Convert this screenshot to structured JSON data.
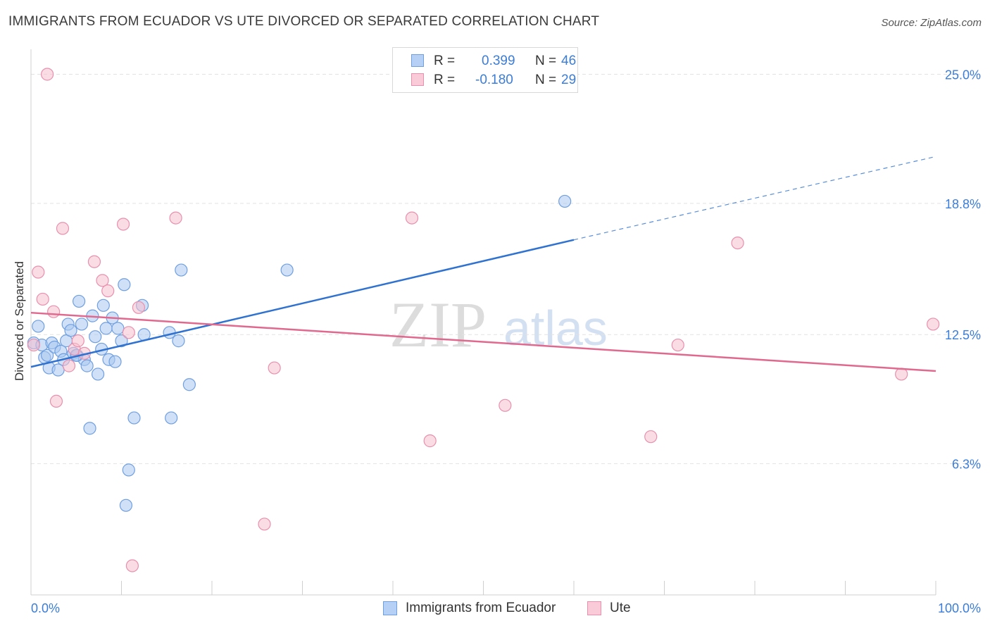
{
  "title": "IMMIGRANTS FROM ECUADOR VS UTE DIVORCED OR SEPARATED CORRELATION CHART",
  "source": "Source: ZipAtlas.com",
  "watermark": {
    "zip": "ZIP",
    "atlas": "atlas"
  },
  "legend": {
    "rows": [
      {
        "r_label": "R =",
        "r_value": "0.399",
        "n_label": "N =",
        "n_value": "46"
      },
      {
        "r_label": "R =",
        "r_value": "-0.180",
        "n_label": "N =",
        "n_value": "29"
      }
    ]
  },
  "bottom_legend": [
    "Immigrants from Ecuador",
    "Ute"
  ],
  "colors": {
    "blue_fill": "#a9c8f0",
    "blue_stroke": "#6f9fe0",
    "blue_line": "#2f72d0",
    "pink_fill": "#f6bfd0",
    "pink_stroke": "#e890ad",
    "pink_line": "#e0698f",
    "tick_label": "#3b7dd8",
    "grid": "#e2e2e2"
  },
  "chart_data": {
    "type": "scatter",
    "title": "IMMIGRANTS FROM ECUADOR VS UTE DIVORCED OR SEPARATED CORRELATION CHART",
    "xlabel": "",
    "ylabel": "Divorced or Separated",
    "xlim": [
      0,
      100
    ],
    "ylim": [
      0,
      26.2
    ],
    "x_tick_labels": [
      "0.0%",
      "100.0%"
    ],
    "x_minor_ticks": [
      10,
      20,
      30,
      40,
      50,
      60,
      70,
      80,
      90,
      100
    ],
    "y_ticks": [
      6.3,
      12.5,
      18.8,
      25.0
    ],
    "y_tick_labels": [
      "6.3%",
      "12.5%",
      "18.8%",
      "25.0%"
    ],
    "grid": "horizontal dashed",
    "legend_position": "top-center",
    "series": [
      {
        "name": "Immigrants from Ecuador",
        "color": "#a9c8f0",
        "points": [
          [
            0.3,
            12.1
          ],
          [
            0.8,
            12.9
          ],
          [
            1.2,
            12.0
          ],
          [
            1.5,
            11.4
          ],
          [
            1.8,
            11.5
          ],
          [
            2.0,
            10.9
          ],
          [
            2.3,
            12.1
          ],
          [
            2.6,
            11.9
          ],
          [
            3.0,
            10.8
          ],
          [
            3.3,
            11.7
          ],
          [
            3.6,
            11.3
          ],
          [
            3.9,
            12.2
          ],
          [
            4.1,
            13.0
          ],
          [
            4.4,
            12.7
          ],
          [
            4.7,
            11.6
          ],
          [
            5.1,
            11.5
          ],
          [
            5.3,
            14.1
          ],
          [
            5.6,
            13.0
          ],
          [
            5.9,
            11.3
          ],
          [
            6.2,
            11.0
          ],
          [
            6.5,
            8.0
          ],
          [
            6.8,
            13.4
          ],
          [
            7.1,
            12.4
          ],
          [
            7.4,
            10.6
          ],
          [
            7.8,
            11.8
          ],
          [
            8.0,
            13.9
          ],
          [
            8.3,
            12.8
          ],
          [
            8.6,
            11.3
          ],
          [
            9.0,
            13.3
          ],
          [
            9.3,
            11.2
          ],
          [
            9.6,
            12.8
          ],
          [
            10.0,
            12.2
          ],
          [
            10.3,
            14.9
          ],
          [
            10.5,
            4.3
          ],
          [
            10.8,
            6.0
          ],
          [
            11.4,
            8.5
          ],
          [
            12.3,
            13.9
          ],
          [
            12.5,
            12.5
          ],
          [
            15.3,
            12.6
          ],
          [
            15.5,
            8.5
          ],
          [
            16.3,
            12.2
          ],
          [
            16.6,
            15.6
          ],
          [
            17.5,
            10.1
          ],
          [
            28.3,
            15.6
          ],
          [
            59.0,
            18.9
          ],
          [
            5.0,
            11.5
          ]
        ]
      },
      {
        "name": "Ute",
        "color": "#f6bfd0",
        "points": [
          [
            0.3,
            12.0
          ],
          [
            0.8,
            15.5
          ],
          [
            1.3,
            14.2
          ],
          [
            1.8,
            25.0
          ],
          [
            2.5,
            13.6
          ],
          [
            2.8,
            9.3
          ],
          [
            3.5,
            17.6
          ],
          [
            4.2,
            11.0
          ],
          [
            4.8,
            11.8
          ],
          [
            5.2,
            12.2
          ],
          [
            5.9,
            11.6
          ],
          [
            7.0,
            16.0
          ],
          [
            7.9,
            15.1
          ],
          [
            8.5,
            14.6
          ],
          [
            10.2,
            17.8
          ],
          [
            10.8,
            12.6
          ],
          [
            11.2,
            1.4
          ],
          [
            11.9,
            13.8
          ],
          [
            16.0,
            18.1
          ],
          [
            25.8,
            3.4
          ],
          [
            26.9,
            10.9
          ],
          [
            42.1,
            18.1
          ],
          [
            44.1,
            7.4
          ],
          [
            52.4,
            9.1
          ],
          [
            68.5,
            7.6
          ],
          [
            71.5,
            12.0
          ],
          [
            78.1,
            16.9
          ],
          [
            96.2,
            10.6
          ],
          [
            99.7,
            13.0
          ]
        ]
      }
    ],
    "trendlines": [
      {
        "series": "Immigrants from Ecuador",
        "x": [
          0,
          60
        ],
        "y": [
          10.95,
          17.05
        ],
        "dashed_extension": {
          "x": [
            60,
            100
          ],
          "y": [
            17.05,
            21.05
          ]
        }
      },
      {
        "series": "Ute",
        "x": [
          0,
          100
        ],
        "y": [
          13.55,
          10.75
        ]
      }
    ]
  }
}
